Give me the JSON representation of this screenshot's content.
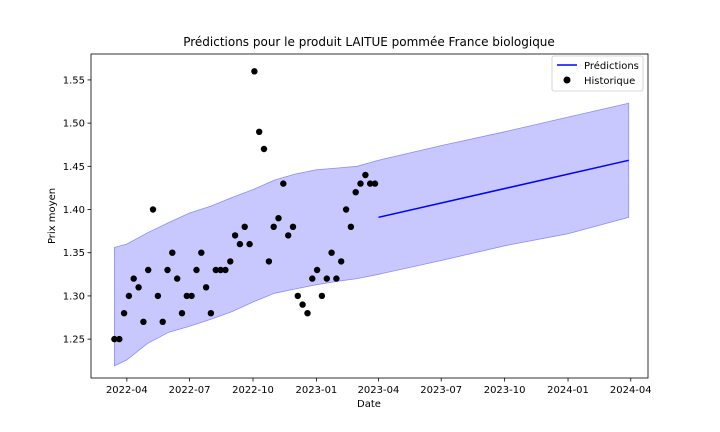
{
  "chart_data": {
    "type": "line",
    "title": "Prédictions pour le produit LAITUE pommée France biologique",
    "xlabel": "Date",
    "ylabel": "Prix moyen",
    "ylim": [
      1.205,
      1.58
    ],
    "xlim": [
      "2022-02-08",
      "2024-04-26"
    ],
    "grid": false,
    "legend": {
      "placement": "top-right",
      "entries": [
        {
          "label": "Prédictions",
          "kind": "line",
          "color": "#0000ff"
        },
        {
          "label": "Historique",
          "kind": "marker",
          "color": "#000000"
        }
      ]
    },
    "x_ticks": [
      "2022-04",
      "2022-07",
      "2022-10",
      "2023-01",
      "2023-04",
      "2023-07",
      "2023-10",
      "2024-01",
      "2024-04"
    ],
    "y_ticks": [
      1.25,
      1.3,
      1.35,
      1.4,
      1.45,
      1.5,
      1.55
    ],
    "colors": {
      "band": "#c8c8ff",
      "band_edge": "#8c8cff",
      "line": "#0000ff",
      "points": "#000000"
    },
    "series": [
      {
        "name": "Prédictions",
        "kind": "line",
        "x": [
          "2023-04-01",
          "2024-03-29"
        ],
        "y": [
          1.391,
          1.457
        ]
      },
      {
        "kind": "band",
        "x": [
          "2022-03-14",
          "2022-04-01",
          "2022-05-01",
          "2022-06-01",
          "2022-07-01",
          "2022-08-01",
          "2022-09-01",
          "2022-10-01",
          "2022-11-01",
          "2022-12-01",
          "2023-01-01",
          "2023-02-01",
          "2023-03-01",
          "2023-04-01",
          "2023-07-01",
          "2023-10-01",
          "2024-01-01",
          "2024-03-29"
        ],
        "upper": [
          1.356,
          1.36,
          1.373,
          1.385,
          1.396,
          1.404,
          1.414,
          1.423,
          1.434,
          1.441,
          1.446,
          1.448,
          1.45,
          1.457,
          1.474,
          1.49,
          1.507,
          1.523
        ],
        "lower": [
          1.219,
          1.226,
          1.245,
          1.258,
          1.265,
          1.273,
          1.282,
          1.293,
          1.303,
          1.308,
          1.313,
          1.317,
          1.32,
          1.325,
          1.341,
          1.358,
          1.372,
          1.391
        ]
      },
      {
        "name": "Historique",
        "kind": "scatter",
        "x": [
          "2022-03-14",
          "2022-03-21",
          "2022-03-28",
          "2022-04-04",
          "2022-04-11",
          "2022-04-18",
          "2022-04-25",
          "2022-05-02",
          "2022-05-09",
          "2022-05-16",
          "2022-05-23",
          "2022-05-30",
          "2022-06-06",
          "2022-06-13",
          "2022-06-20",
          "2022-06-27",
          "2022-07-04",
          "2022-07-11",
          "2022-07-18",
          "2022-07-25",
          "2022-08-01",
          "2022-08-08",
          "2022-08-15",
          "2022-08-22",
          "2022-08-29",
          "2022-09-05",
          "2022-09-12",
          "2022-09-19",
          "2022-09-26",
          "2022-10-03",
          "2022-10-10",
          "2022-10-17",
          "2022-10-24",
          "2022-10-31",
          "2022-11-07",
          "2022-11-14",
          "2022-11-21",
          "2022-11-28",
          "2022-12-05",
          "2022-12-12",
          "2022-12-19",
          "2022-12-26",
          "2023-01-02",
          "2023-01-09",
          "2023-01-16",
          "2023-01-23",
          "2023-01-30",
          "2023-02-06",
          "2023-02-13",
          "2023-02-20",
          "2023-02-27",
          "2023-03-06",
          "2023-03-13",
          "2023-03-20",
          "2023-03-27"
        ],
        "y": [
          1.25,
          1.25,
          1.28,
          1.3,
          1.32,
          1.31,
          1.27,
          1.33,
          1.4,
          1.3,
          1.27,
          1.33,
          1.35,
          1.32,
          1.28,
          1.3,
          1.3,
          1.33,
          1.35,
          1.31,
          1.28,
          1.33,
          1.33,
          1.33,
          1.34,
          1.37,
          1.36,
          1.38,
          1.36,
          1.56,
          1.49,
          1.47,
          1.34,
          1.38,
          1.39,
          1.43,
          1.37,
          1.38,
          1.3,
          1.29,
          1.28,
          1.32,
          1.33,
          1.3,
          1.32,
          1.35,
          1.32,
          1.34,
          1.4,
          1.38,
          1.42,
          1.43,
          1.44,
          1.43,
          1.43
        ]
      }
    ]
  }
}
